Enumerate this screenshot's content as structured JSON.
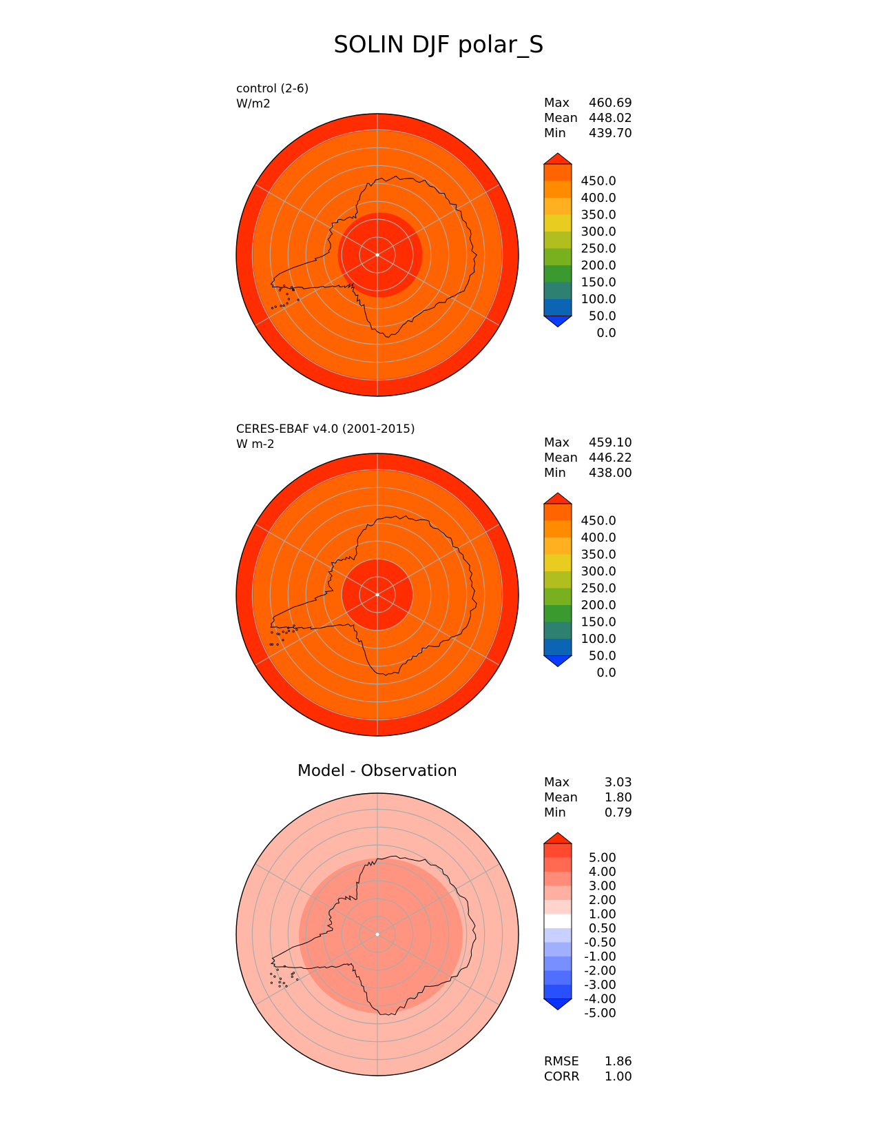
{
  "figure_title": "SOLIN DJF polar_S",
  "colors": {
    "land_outline": "#000000",
    "gridline": "#aaaaaa",
    "pole_marker": "#ffffff"
  },
  "chart_data": [
    {
      "type": "heatmap",
      "projection": "south polar stereographic",
      "title": "",
      "label_line1": "control (2-6)",
      "label_line2": "W/m2",
      "stats": {
        "max_label": "Max",
        "max": "460.69",
        "mean_label": "Mean",
        "mean": "448.02",
        "min_label": "Min",
        "min": "439.70"
      },
      "colorbar": {
        "levels": [
          "450.0",
          "400.0",
          "350.0",
          "300.0",
          "250.0",
          "200.0",
          "150.0",
          "100.0",
          "50.0",
          "0.0"
        ],
        "colors_bottom_to_top": [
          "#0a3cff",
          "#0b64b4",
          "#2e8070",
          "#3a9a30",
          "#78b020",
          "#b0be20",
          "#e8cc20",
          "#ffb020",
          "#ff8c00",
          "#ff6400",
          "#ff2d00"
        ],
        "extend": "both"
      },
      "regions": [
        {
          "name": "outer ring",
          "value_range": "> 450",
          "color": "#ff2d00"
        },
        {
          "name": "mid latitudes",
          "value_range": "400–450",
          "color": "#ff6400"
        },
        {
          "name": "polar cap",
          "value_range": "> 450",
          "color": "#ff2d00"
        }
      ]
    },
    {
      "type": "heatmap",
      "projection": "south polar stereographic",
      "title": "",
      "label_line1": "CERES-EBAF v4.0 (2001-2015)",
      "label_line2": "W m-2",
      "stats": {
        "max_label": "Max",
        "max": "459.10",
        "mean_label": "Mean",
        "mean": "446.22",
        "min_label": "Min",
        "min": "438.00"
      },
      "colorbar": {
        "levels": [
          "450.0",
          "400.0",
          "350.0",
          "300.0",
          "250.0",
          "200.0",
          "150.0",
          "100.0",
          "50.0",
          "0.0"
        ],
        "colors_bottom_to_top": [
          "#0a3cff",
          "#0b64b4",
          "#2e8070",
          "#3a9a30",
          "#78b020",
          "#b0be20",
          "#e8cc20",
          "#ffb020",
          "#ff8c00",
          "#ff6400",
          "#ff2d00"
        ],
        "extend": "both"
      },
      "regions": [
        {
          "name": "outer ring",
          "value_range": "> 450",
          "color": "#ff2d00"
        },
        {
          "name": "mid latitudes",
          "value_range": "400–450",
          "color": "#ff6400"
        },
        {
          "name": "polar cap",
          "value_range": "> 450",
          "color": "#ff2d00"
        }
      ]
    },
    {
      "type": "heatmap",
      "projection": "south polar stereographic",
      "title": "Model - Observation",
      "label_line1": "",
      "label_line2": "",
      "stats": {
        "max_label": "Max",
        "max": "3.03",
        "mean_label": "Mean",
        "mean": "1.80",
        "min_label": "Min",
        "min": "0.79"
      },
      "colorbar": {
        "levels": [
          "5.00",
          "4.00",
          "3.00",
          "2.00",
          "1.00",
          "0.50",
          "-0.50",
          "-1.00",
          "-2.00",
          "-3.00",
          "-4.00",
          "-5.00"
        ],
        "colors_bottom_to_top": [
          "#0a32ff",
          "#2850ff",
          "#506eff",
          "#7890ff",
          "#a0b0ff",
          "#c8d0ff",
          "#ffffff",
          "#ffd4cc",
          "#ffb0a0",
          "#ff8c78",
          "#ff6a50",
          "#ff4a30",
          "#ff2d00"
        ],
        "extend": "both"
      },
      "regions": [
        {
          "name": "outer ocean",
          "value_range": "1.00–2.00",
          "color": "#ffb8a8"
        },
        {
          "name": "antarctic interior",
          "value_range": "2.00–3.00",
          "color": "#ff9480"
        }
      ],
      "extra_stats": {
        "rmse_label": "RMSE",
        "rmse": "1.86",
        "corr_label": "CORR",
        "corr": "1.00"
      }
    }
  ]
}
